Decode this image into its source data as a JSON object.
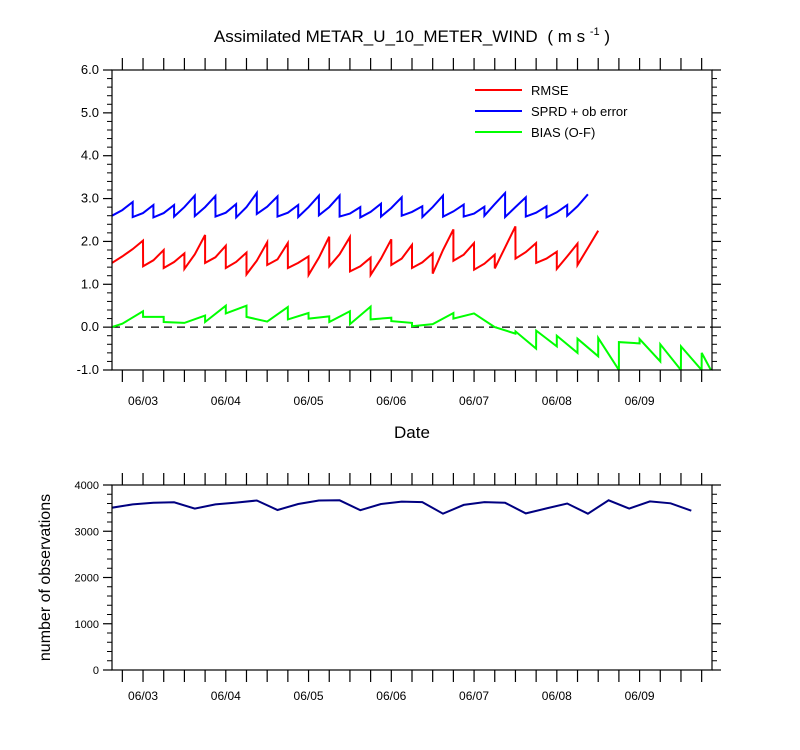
{
  "chart_data": [
    {
      "type": "line",
      "title": "Assimilated METAR_U_10_METER_WIND",
      "title_units": "( m s",
      "title_units_sup": "-1",
      "title_units_end": " )",
      "xlabel": "Date",
      "ylabel": "",
      "x_domain": [
        -0.5,
        28.5
      ],
      "ylim": [
        -1.0,
        6.0
      ],
      "y_ticks": [
        "-1.0",
        "0.0",
        "1.0",
        "2.0",
        "3.0",
        "4.0",
        "5.0",
        "6.0"
      ],
      "x_tick_labels": [
        {
          "label": "06/03",
          "x": 1
        },
        {
          "label": "06/04",
          "x": 5
        },
        {
          "label": "06/05",
          "x": 9
        },
        {
          "label": "06/06",
          "x": 13
        },
        {
          "label": "06/07",
          "x": 17
        },
        {
          "label": "06/08",
          "x": 21
        },
        {
          "label": "06/09",
          "x": 25
        }
      ],
      "reference_line": 0.0,
      "legend_position": "top-right",
      "series": [
        {
          "name": "RMSE",
          "color": "#ff0000",
          "points": [
            [
              -0.5,
              1.5
            ],
            [
              0,
              1.65
            ],
            [
              0.5,
              1.82
            ],
            [
              0.999,
              2.02
            ],
            [
              1.001,
              1.42
            ],
            [
              1.5,
              1.56
            ],
            [
              1.999,
              1.8
            ],
            [
              2.001,
              1.38
            ],
            [
              2.5,
              1.52
            ],
            [
              2.999,
              1.72
            ],
            [
              3.001,
              1.36
            ],
            [
              3.5,
              1.7
            ],
            [
              3.999,
              2.15
            ],
            [
              4.001,
              1.5
            ],
            [
              4.5,
              1.63
            ],
            [
              4.999,
              1.9
            ],
            [
              5.001,
              1.38
            ],
            [
              5.5,
              1.52
            ],
            [
              5.999,
              1.74
            ],
            [
              6.001,
              1.23
            ],
            [
              6.5,
              1.55
            ],
            [
              6.999,
              1.98
            ],
            [
              7.001,
              1.45
            ],
            [
              7.5,
              1.58
            ],
            [
              7.999,
              1.96
            ],
            [
              8.001,
              1.38
            ],
            [
              8.5,
              1.5
            ],
            [
              8.999,
              1.65
            ],
            [
              9.001,
              1.22
            ],
            [
              9.5,
              1.62
            ],
            [
              9.999,
              2.11
            ],
            [
              10.001,
              1.42
            ],
            [
              10.5,
              1.7
            ],
            [
              10.999,
              2.1
            ],
            [
              11.001,
              1.3
            ],
            [
              11.5,
              1.42
            ],
            [
              11.999,
              1.62
            ],
            [
              12.001,
              1.22
            ],
            [
              12.5,
              1.6
            ],
            [
              12.999,
              2.05
            ],
            [
              13.001,
              1.45
            ],
            [
              13.5,
              1.6
            ],
            [
              13.999,
              1.92
            ],
            [
              14.001,
              1.38
            ],
            [
              14.5,
              1.51
            ],
            [
              14.999,
              1.72
            ],
            [
              15.001,
              1.25
            ],
            [
              15.5,
              1.8
            ],
            [
              15.999,
              2.28
            ],
            [
              16.001,
              1.55
            ],
            [
              16.5,
              1.69
            ],
            [
              16.999,
              1.96
            ],
            [
              17.001,
              1.34
            ],
            [
              17.5,
              1.48
            ],
            [
              17.999,
              1.69
            ],
            [
              18.001,
              1.37
            ],
            [
              18.5,
              1.86
            ],
            [
              18.999,
              2.35
            ],
            [
              19.001,
              1.6
            ],
            [
              19.5,
              1.75
            ],
            [
              19.999,
              1.96
            ],
            [
              20.001,
              1.5
            ],
            [
              20.5,
              1.6
            ],
            [
              20.999,
              1.76
            ],
            [
              21.001,
              1.36
            ],
            [
              21.5,
              1.65
            ],
            [
              21.999,
              1.95
            ],
            [
              22.001,
              1.45
            ],
            [
              22.5,
              1.85
            ],
            [
              23.0,
              2.25
            ]
          ]
        },
        {
          "name": "SPRD + ob error",
          "color": "#0000ff",
          "points": [
            [
              -0.5,
              2.6
            ],
            [
              0,
              2.73
            ],
            [
              0.5,
              2.92
            ],
            [
              0.501,
              2.57
            ],
            [
              1,
              2.66
            ],
            [
              1.5,
              2.85
            ],
            [
              1.501,
              2.56
            ],
            [
              2,
              2.66
            ],
            [
              2.5,
              2.85
            ],
            [
              2.501,
              2.58
            ],
            [
              3,
              2.8
            ],
            [
              3.5,
              3.07
            ],
            [
              3.501,
              2.59
            ],
            [
              4,
              2.8
            ],
            [
              4.5,
              3.06
            ],
            [
              4.501,
              2.58
            ],
            [
              5,
              2.67
            ],
            [
              5.5,
              2.87
            ],
            [
              5.501,
              2.56
            ],
            [
              6,
              2.8
            ],
            [
              6.5,
              3.13
            ],
            [
              6.501,
              2.64
            ],
            [
              7,
              2.81
            ],
            [
              7.5,
              3.05
            ],
            [
              7.501,
              2.58
            ],
            [
              8,
              2.67
            ],
            [
              8.5,
              2.85
            ],
            [
              8.501,
              2.57
            ],
            [
              9,
              2.8
            ],
            [
              9.5,
              3.07
            ],
            [
              9.501,
              2.61
            ],
            [
              10,
              2.8
            ],
            [
              10.5,
              3.07
            ],
            [
              10.501,
              2.58
            ],
            [
              11,
              2.65
            ],
            [
              11.5,
              2.8
            ],
            [
              11.501,
              2.56
            ],
            [
              12,
              2.69
            ],
            [
              12.5,
              2.88
            ],
            [
              12.501,
              2.58
            ],
            [
              13,
              2.78
            ],
            [
              13.5,
              3.03
            ],
            [
              13.501,
              2.6
            ],
            [
              14,
              2.69
            ],
            [
              14.5,
              2.82
            ],
            [
              14.501,
              2.57
            ],
            [
              15,
              2.8
            ],
            [
              15.5,
              3.07
            ],
            [
              15.501,
              2.58
            ],
            [
              16,
              2.7
            ],
            [
              16.5,
              2.86
            ],
            [
              16.501,
              2.58
            ],
            [
              17,
              2.65
            ],
            [
              17.5,
              2.81
            ],
            [
              17.501,
              2.6
            ],
            [
              18,
              2.87
            ],
            [
              18.5,
              3.13
            ],
            [
              18.501,
              2.57
            ],
            [
              19,
              2.8
            ],
            [
              19.5,
              3.03
            ],
            [
              19.501,
              2.58
            ],
            [
              20,
              2.67
            ],
            [
              20.5,
              2.82
            ],
            [
              20.501,
              2.56
            ],
            [
              21,
              2.68
            ],
            [
              21.5,
              2.85
            ],
            [
              21.501,
              2.6
            ],
            [
              22,
              2.82
            ],
            [
              22.5,
              3.1
            ]
          ]
        },
        {
          "name": "BIAS (O-F)",
          "color": "#00ff00",
          "points": [
            [
              -0.5,
              0.0
            ],
            [
              0,
              0.08
            ],
            [
              0.999,
              0.37
            ],
            [
              1.001,
              0.24
            ],
            [
              1.999,
              0.24
            ],
            [
              2.001,
              0.12
            ],
            [
              2.999,
              0.1
            ],
            [
              3.999,
              0.27
            ],
            [
              4.001,
              0.12
            ],
            [
              4.999,
              0.5
            ],
            [
              5.001,
              0.32
            ],
            [
              5.999,
              0.5
            ],
            [
              6.001,
              0.24
            ],
            [
              6.999,
              0.13
            ],
            [
              7.999,
              0.47
            ],
            [
              8.001,
              0.18
            ],
            [
              8.999,
              0.33
            ],
            [
              9.001,
              0.2
            ],
            [
              9.999,
              0.25
            ],
            [
              10.001,
              0.12
            ],
            [
              10.999,
              0.37
            ],
            [
              11.001,
              0.07
            ],
            [
              11.999,
              0.48
            ],
            [
              12.001,
              0.18
            ],
            [
              12.999,
              0.22
            ],
            [
              13.001,
              0.14
            ],
            [
              13.999,
              0.1
            ],
            [
              14.001,
              0.02
            ],
            [
              14.999,
              0.07
            ],
            [
              15.999,
              0.33
            ],
            [
              16.001,
              0.2
            ],
            [
              16.999,
              0.32
            ],
            [
              17.999,
              0.0
            ],
            [
              18.999,
              -0.15
            ],
            [
              19.001,
              -0.1
            ],
            [
              19.999,
              -0.5
            ],
            [
              20.001,
              -0.08
            ],
            [
              20.999,
              -0.45
            ],
            [
              21.001,
              -0.2
            ],
            [
              21.999,
              -0.6
            ],
            [
              22.001,
              -0.27
            ],
            [
              22.999,
              -0.68
            ],
            [
              23.001,
              -0.25
            ],
            [
              23.999,
              -1.0
            ],
            [
              24.001,
              -0.35
            ],
            [
              24.999,
              -0.38
            ],
            [
              25.001,
              -0.28
            ],
            [
              25.999,
              -0.8
            ],
            [
              26.001,
              -0.4
            ],
            [
              26.999,
              -1.0
            ],
            [
              27.001,
              -0.45
            ],
            [
              27.999,
              -1.0
            ],
            [
              28.001,
              -0.6
            ],
            [
              28.5,
              -1.05
            ]
          ]
        }
      ]
    },
    {
      "type": "line",
      "title": "",
      "xlabel": "",
      "ylabel": "number of observations",
      "x_domain": [
        -0.5,
        28.5
      ],
      "ylim": [
        0,
        4000
      ],
      "y_ticks": [
        "0",
        "1000",
        "2000",
        "3000",
        "4000"
      ],
      "x_tick_labels": [
        {
          "label": "06/03",
          "x": 1
        },
        {
          "label": "06/04",
          "x": 5
        },
        {
          "label": "06/05",
          "x": 9
        },
        {
          "label": "06/06",
          "x": 13
        },
        {
          "label": "06/07",
          "x": 17
        },
        {
          "label": "06/08",
          "x": 21
        },
        {
          "label": "06/09",
          "x": 25
        }
      ],
      "series": [
        {
          "color": "#000080",
          "points": [
            [
              -0.5,
              3510
            ],
            [
              0.5,
              3580
            ],
            [
              1.5,
              3615
            ],
            [
              2.5,
              3625
            ],
            [
              3.5,
              3490
            ],
            [
              4.5,
              3580
            ],
            [
              5.5,
              3620
            ],
            [
              6.5,
              3665
            ],
            [
              7.5,
              3460
            ],
            [
              8.5,
              3590
            ],
            [
              9.5,
              3665
            ],
            [
              10.5,
              3670
            ],
            [
              11.5,
              3455
            ],
            [
              12.5,
              3590
            ],
            [
              13.5,
              3640
            ],
            [
              14.5,
              3630
            ],
            [
              15.5,
              3380
            ],
            [
              16.5,
              3570
            ],
            [
              17.5,
              3630
            ],
            [
              18.5,
              3615
            ],
            [
              19.5,
              3385
            ],
            [
              20.5,
              3495
            ],
            [
              21.5,
              3600
            ],
            [
              22.5,
              3380
            ],
            [
              23.5,
              3670
            ],
            [
              24.5,
              3490
            ],
            [
              25.5,
              3645
            ],
            [
              26.5,
              3605
            ],
            [
              27.5,
              3445
            ]
          ]
        }
      ]
    }
  ]
}
